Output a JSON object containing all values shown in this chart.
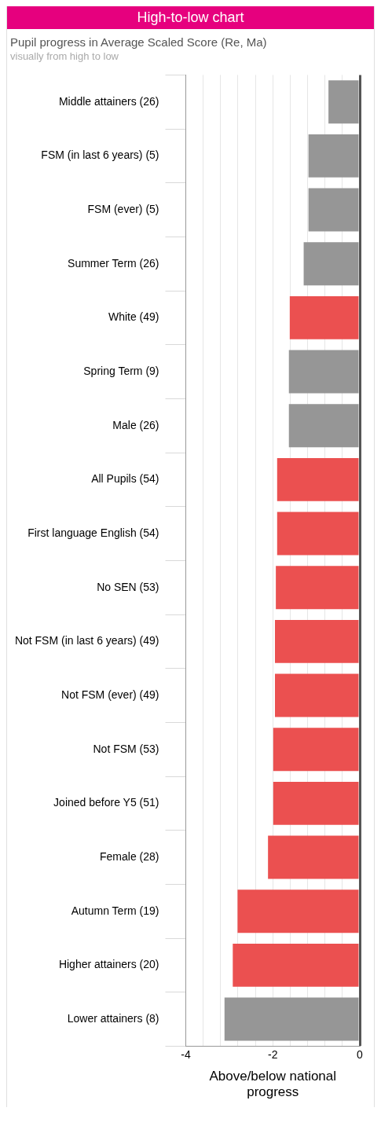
{
  "chart_data": {
    "type": "bar",
    "orientation": "horizontal",
    "title": "High-to-low chart",
    "subtitle": "Pupil progress in Average Scaled Score (Re, Ma)",
    "annotations": [
      "visually from high to low"
    ],
    "xlabel": "Above/below national progress",
    "categories": [
      "Middle attainers (26)",
      "FSM (in last 6 years) (5)",
      "FSM (ever) (5)",
      "Summer Term (26)",
      "White (49)",
      "Spring Term (9)",
      "Male (26)",
      "All Pupils (54)",
      "First language English (54)",
      "No SEN (53)",
      "Not FSM (in last 6 years) (49)",
      "Not FSM (ever) (49)",
      "Not FSM (53)",
      "Joined before Y5 (51)",
      "Female (28)",
      "Autumn Term (19)",
      "Higher attainers (20)",
      "Lower attainers (8)"
    ],
    "values": [
      -0.72,
      -1.18,
      -1.18,
      -1.29,
      -1.61,
      -1.63,
      -1.63,
      -1.9,
      -1.9,
      -1.93,
      -1.95,
      -1.95,
      -1.99,
      -1.99,
      -2.11,
      -2.81,
      -2.92,
      -3.11
    ],
    "colors": [
      "#969696",
      "#969696",
      "#969696",
      "#969696",
      "#eb5050",
      "#969696",
      "#969696",
      "#eb5050",
      "#eb5050",
      "#eb5050",
      "#eb5050",
      "#eb5050",
      "#eb5050",
      "#eb5050",
      "#eb5050",
      "#eb5050",
      "#eb5050",
      "#969696"
    ],
    "xlim": [
      -4,
      0
    ],
    "xticks": [
      -4,
      {
        "value": -3.6,
        "label": null
      },
      {
        "value": -3.2,
        "label": null
      },
      {
        "value": -2.8,
        "label": null
      },
      {
        "value": -2.4,
        "label": null
      },
      -2,
      {
        "value": -1.6,
        "label": null
      },
      {
        "value": -1.2,
        "label": null
      },
      {
        "value": -0.8,
        "label": null
      },
      {
        "value": -0.4,
        "label": null
      },
      0
    ],
    "grid": "x",
    "legend": false
  }
}
